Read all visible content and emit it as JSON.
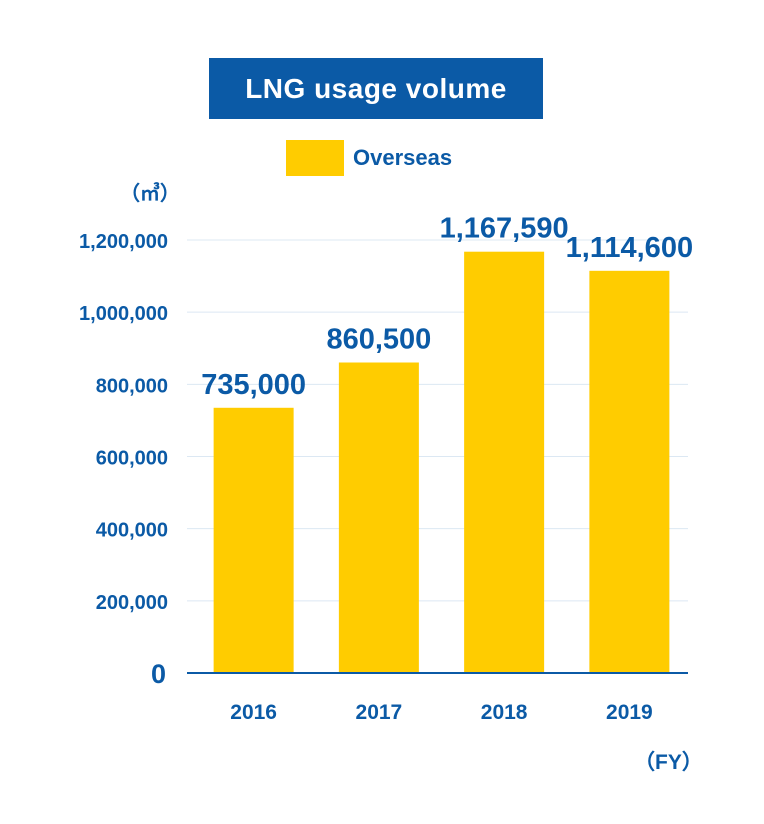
{
  "chart_data": {
    "type": "bar",
    "title": "LNG usage volume",
    "unit": "（㎥）",
    "xlabel": "（FY）",
    "ylabel": "",
    "categories": [
      "2016",
      "2017",
      "2018",
      "2019"
    ],
    "series": [
      {
        "name": "Overseas",
        "values": [
          735000,
          860500,
          1167590,
          1114600
        ],
        "data_labels": [
          "735,000",
          "860,500",
          "1,167,590",
          "1,114,600"
        ]
      }
    ],
    "ylim": [
      0,
      1200000
    ],
    "yticks": [
      0,
      200000,
      400000,
      600000,
      800000,
      1000000,
      1200000
    ],
    "ytick_labels": [
      "0",
      "200,000",
      "400,000",
      "600,000",
      "800,000",
      "1,000,000",
      "1,200,000"
    ],
    "grid": true,
    "legend_position": "top-center",
    "colors": {
      "bar": "#ffcc00",
      "accent": "#0b5aa6",
      "grid": "#dce8f3",
      "axis": "#0b5aa6"
    }
  }
}
